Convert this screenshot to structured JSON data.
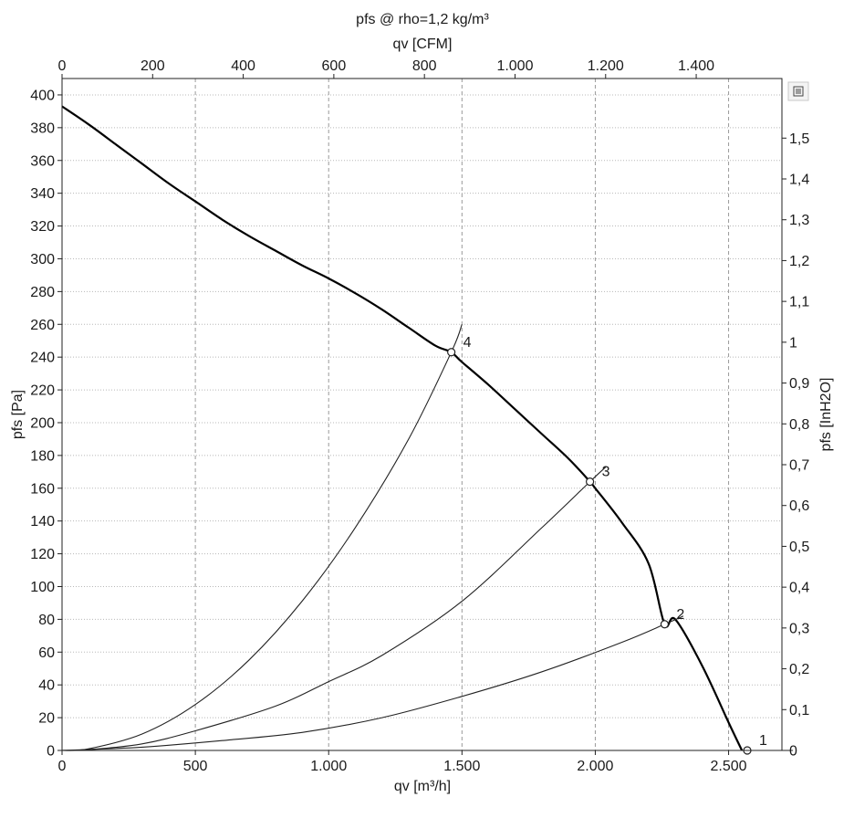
{
  "chart_data": {
    "type": "line",
    "title": "pfs @ rho=1,2 kg/m³",
    "xlabel": "qv [m³/h]",
    "ylabel": "pfs [Pa]",
    "x2label": "qv [CFM]",
    "y2label": "pfs [InH2O]",
    "xlim": [
      0,
      2700
    ],
    "ylim": [
      0,
      410
    ],
    "x2lim": [
      0,
      1589.2
    ],
    "y2lim": [
      0,
      1.646
    ],
    "x_ticks": [
      0,
      500,
      1000,
      1500,
      2000,
      2500
    ],
    "x_tick_labels": [
      "0",
      "500",
      "1.000",
      "1.500",
      "2.000",
      "2.500"
    ],
    "y_ticks": [
      0,
      20,
      40,
      60,
      80,
      100,
      120,
      140,
      160,
      180,
      200,
      220,
      240,
      260,
      280,
      300,
      320,
      340,
      360,
      380,
      400
    ],
    "y_tick_labels": [
      "0",
      "20",
      "40",
      "60",
      "80",
      "100",
      "120",
      "140",
      "160",
      "180",
      "200",
      "220",
      "240",
      "260",
      "280",
      "300",
      "320",
      "340",
      "360",
      "380",
      "400"
    ],
    "x2_ticks": [
      0,
      200,
      400,
      600,
      800,
      1000,
      1200,
      1400
    ],
    "x2_tick_labels": [
      "0",
      "200",
      "400",
      "600",
      "800",
      "1.000",
      "1.200",
      "1.400"
    ],
    "y2_ticks": [
      0,
      0.1,
      0.2,
      0.3,
      0.4,
      0.5,
      0.6,
      0.7,
      0.8,
      0.9,
      1.0,
      1.1,
      1.2,
      1.3,
      1.4,
      1.5
    ],
    "y2_tick_labels": [
      "0",
      "0,1",
      "0,2",
      "0,3",
      "0,4",
      "0,5",
      "0,6",
      "0,7",
      "0,8",
      "0,9",
      "1",
      "1,1",
      "1,2",
      "1,3",
      "1,4",
      "1,5"
    ],
    "grid": true,
    "series": [
      {
        "role": "fan_curve",
        "x": [
          0,
          100,
          200,
          300,
          400,
          500,
          600,
          700,
          800,
          900,
          1000,
          1100,
          1200,
          1300,
          1400,
          1460,
          1500,
          1600,
          1700,
          1800,
          1900,
          1980,
          2000,
          2100,
          2200,
          2260,
          2300,
          2400,
          2500,
          2550
        ],
        "y": [
          393,
          382,
          370,
          358,
          346,
          335,
          324,
          314,
          305,
          296,
          288,
          279,
          269,
          258,
          247,
          243,
          237,
          223,
          208,
          193,
          178,
          164,
          160,
          139,
          114,
          77,
          80,
          52,
          17,
          0
        ]
      },
      {
        "role": "system_curve",
        "x": [
          0,
          100,
          300,
          500,
          700,
          900,
          1100,
          1300,
          1460,
          1500
        ],
        "y": [
          0,
          1,
          10,
          28,
          55,
          91,
          136,
          190,
          243,
          260
        ]
      },
      {
        "role": "system_curve",
        "x": [
          0,
          100,
          300,
          500,
          800,
          1000,
          1200,
          1500,
          1800,
          1980,
          2040
        ],
        "y": [
          0,
          0.5,
          4,
          12,
          27,
          42,
          58,
          91,
          136,
          164,
          173
        ]
      },
      {
        "role": "system_curve",
        "x": [
          0,
          300,
          600,
          900,
          1200,
          1500,
          1800,
          2100,
          2260,
          2330
        ],
        "y": [
          0,
          2,
          6,
          11,
          20,
          33,
          48,
          66,
          77,
          82
        ]
      },
      {
        "role": "system_curve",
        "x": [
          0,
          2550,
          2570,
          2700
        ],
        "y": [
          0,
          0,
          0,
          0
        ]
      }
    ],
    "operating_points": [
      {
        "label": "1",
        "x": 2570,
        "y": 0
      },
      {
        "label": "2",
        "x": 2260,
        "y": 77
      },
      {
        "label": "3",
        "x": 1980,
        "y": 164
      },
      {
        "label": "4",
        "x": 1460,
        "y": 243
      }
    ]
  }
}
